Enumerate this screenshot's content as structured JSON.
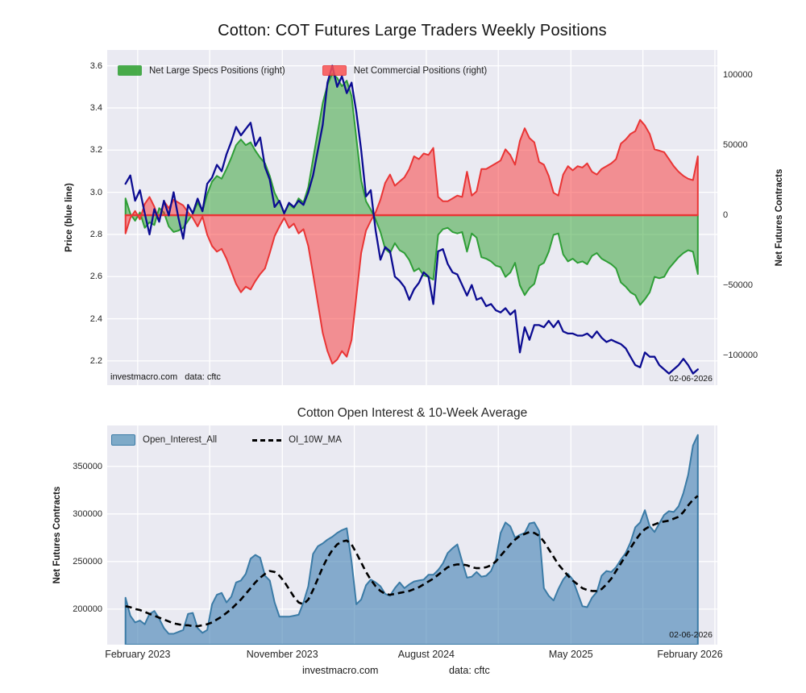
{
  "figure_background": "#ffffff",
  "footer": {
    "site": "investmacro.com",
    "source": "data: cftc"
  },
  "chart_data": [
    {
      "type": "line",
      "title": "Cotton: COT Futures Large Traders Weekly Positions",
      "ylabel_left": "Price (blue line)",
      "ylabel_right": "Net Futures Contracts",
      "background": "#eaeaf2",
      "grid_color": "#ffffff",
      "zero_line_color": "#e93535",
      "ylim_left": [
        2.085,
        3.675
      ],
      "ylim_right": [
        -121300,
        117900
      ],
      "yticks_left": {
        "values": [
          3.6,
          3.4,
          3.2,
          3.0,
          2.8,
          2.6,
          2.4,
          2.2
        ],
        "labels": [
          "3.6",
          "3.4",
          "3.2",
          "3.0",
          "2.8",
          "2.6",
          "2.4",
          "2.2"
        ]
      },
      "yticks_right": {
        "values": [
          100000,
          50000,
          0,
          -50000,
          -100000
        ],
        "labels": [
          "100000",
          "50000",
          "0",
          "−50000",
          "−100000"
        ]
      },
      "legend": [
        {
          "label": "Net Large Specs Positions (right)",
          "color": "#2ca02c",
          "border": "#2f9e37"
        },
        {
          "label": "Net Commercial Positions (right)",
          "color": "#fa5252",
          "border": "#e93535"
        }
      ],
      "annotations": {
        "source": "investmacro.com   data: cftc",
        "date": "02-06-2026"
      },
      "series": [
        {
          "name": "Price",
          "axis": "left",
          "style": "line",
          "color": "#0c0c92",
          "values": [
            3.04,
            3.08,
            2.96,
            3.01,
            2.9,
            2.8,
            2.92,
            2.86,
            2.96,
            2.89,
            3.0,
            2.88,
            2.78,
            2.94,
            2.9,
            2.97,
            2.91,
            3.04,
            3.07,
            3.13,
            3.1,
            3.18,
            3.24,
            3.31,
            3.27,
            3.3,
            3.33,
            3.22,
            3.26,
            3.12,
            3.06,
            2.93,
            2.96,
            2.9,
            2.95,
            2.93,
            2.96,
            2.94,
            3.0,
            3.08,
            3.2,
            3.32,
            3.52,
            3.6,
            3.5,
            3.55,
            3.47,
            3.52,
            3.38,
            3.2,
            2.98,
            3.01,
            2.82,
            2.68,
            2.74,
            2.72,
            2.6,
            2.58,
            2.55,
            2.49,
            2.54,
            2.57,
            2.62,
            2.6,
            2.47,
            2.72,
            2.73,
            2.66,
            2.62,
            2.61,
            2.56,
            2.51,
            2.56,
            2.49,
            2.5,
            2.46,
            2.47,
            2.44,
            2.43,
            2.45,
            2.42,
            2.44,
            2.24,
            2.36,
            2.3,
            2.37,
            2.37,
            2.36,
            2.39,
            2.36,
            2.39,
            2.34,
            2.33,
            2.33,
            2.32,
            2.32,
            2.33,
            2.31,
            2.34,
            2.31,
            2.29,
            2.3,
            2.29,
            2.28,
            2.26,
            2.22,
            2.18,
            2.17,
            2.24,
            2.22,
            2.22,
            2.18,
            2.16,
            2.14,
            2.16,
            2.18,
            2.21,
            2.18,
            2.14,
            2.16
          ]
        },
        {
          "name": "Net Large Specs Positions (right)",
          "axis": "right",
          "style": "area",
          "fill": "#2ca02c",
          "stroke": "#2f9e37",
          "values": [
            12000,
            1000,
            -4000,
            2000,
            -9000,
            -5000,
            -7000,
            5000,
            2000,
            -8000,
            -12000,
            -11000,
            -9000,
            -4000,
            1000,
            9000,
            3000,
            15000,
            24000,
            28000,
            26000,
            33000,
            41000,
            50000,
            54000,
            50000,
            52000,
            46000,
            41000,
            37000,
            28000,
            16000,
            9000,
            2000,
            8000,
            5000,
            12000,
            9000,
            20000,
            40000,
            60000,
            80000,
            93000,
            101000,
            98000,
            92000,
            96000,
            85000,
            55000,
            25000,
            10000,
            4000,
            -3000,
            -12000,
            -24000,
            -27000,
            -20000,
            -25000,
            -27000,
            -32000,
            -40000,
            -38000,
            -43000,
            -44000,
            -46000,
            -14000,
            -10000,
            -9000,
            -12000,
            -13000,
            -12000,
            -26000,
            -13000,
            -16000,
            -30000,
            -31000,
            -33000,
            -36000,
            -37000,
            -44000,
            -41000,
            -34000,
            -50000,
            -57000,
            -52000,
            -49000,
            -36000,
            -34000,
            -26000,
            -14000,
            -13000,
            -28000,
            -33000,
            -31000,
            -34000,
            -33000,
            -35000,
            -29000,
            -27000,
            -31000,
            -33000,
            -35000,
            -38000,
            -48000,
            -51000,
            -55000,
            -57000,
            -64000,
            -60000,
            -55000,
            -44000,
            -45000,
            -44000,
            -38000,
            -34000,
            -30000,
            -27000,
            -25000,
            -26000,
            -42000
          ]
        },
        {
          "name": "Net Commercial Positions (right)",
          "axis": "right",
          "style": "area",
          "fill": "#fa3232",
          "stroke": "#e93535",
          "values": [
            -13000,
            -2000,
            3000,
            -3000,
            8000,
            13000,
            6000,
            -4000,
            10000,
            5000,
            11000,
            9000,
            7000,
            2000,
            -2000,
            -8000,
            -1000,
            -14000,
            -22000,
            -26000,
            -24000,
            -31000,
            -40000,
            -49000,
            -55000,
            -51000,
            -53000,
            -47000,
            -42000,
            -38000,
            -27000,
            -15000,
            -8000,
            -2000,
            -9000,
            -6000,
            -13000,
            -10000,
            -22000,
            -42000,
            -63000,
            -84000,
            -97000,
            -106000,
            -103000,
            -97000,
            -101000,
            -89000,
            -58000,
            -27000,
            -11000,
            -4000,
            2000,
            11000,
            23000,
            29000,
            21000,
            24000,
            27000,
            33000,
            42000,
            40000,
            44000,
            43000,
            48000,
            13000,
            10000,
            10000,
            12000,
            14000,
            13000,
            31000,
            14000,
            17000,
            33000,
            33000,
            35000,
            37000,
            39000,
            47000,
            43000,
            36000,
            53000,
            62000,
            55000,
            52000,
            38000,
            36000,
            28000,
            16000,
            14000,
            29000,
            35000,
            32000,
            35000,
            34000,
            37000,
            31000,
            29000,
            33000,
            35000,
            37000,
            40000,
            51000,
            54000,
            58000,
            60000,
            68000,
            64000,
            58000,
            47000,
            46000,
            45000,
            40000,
            35000,
            31000,
            28000,
            26000,
            25000,
            42000
          ]
        }
      ]
    },
    {
      "type": "area",
      "title": "Cotton Open Interest & 10-Week Average",
      "ylabel_left": "Net Futures Contracts",
      "background": "#eaeaf2",
      "grid_color": "#ffffff",
      "ylim": [
        162600,
        393000
      ],
      "yticks_left": {
        "values": [
          350000,
          300000,
          250000,
          200000
        ],
        "labels": [
          "350000",
          "300000",
          "250000",
          "200000"
        ]
      },
      "xticks": {
        "labels": [
          "February 2023",
          "November 2023",
          "August 2024",
          "May 2025",
          "February 2026"
        ]
      },
      "legend": [
        {
          "label": "Open_Interest_All",
          "color": "#7eaac8",
          "border": "#3b7ba6"
        },
        {
          "label": "OI_10W_MA",
          "style": "dashed",
          "color": "#000000"
        }
      ],
      "annotations": {
        "date": "02-06-2026"
      },
      "series": [
        {
          "name": "Open_Interest_All",
          "style": "area",
          "fill": "#4682b4",
          "stroke": "#3b7ba6",
          "values": [
            212000,
            193000,
            186000,
            188000,
            184000,
            195000,
            198000,
            190000,
            180000,
            174000,
            174000,
            176000,
            178000,
            195000,
            196000,
            180000,
            175000,
            178000,
            205000,
            215000,
            217000,
            207000,
            213000,
            228000,
            230000,
            237000,
            253000,
            257000,
            254000,
            235000,
            230000,
            207000,
            192000,
            192000,
            192000,
            193000,
            194000,
            207000,
            224000,
            258000,
            266000,
            269000,
            273000,
            276000,
            280000,
            283000,
            285000,
            250000,
            205000,
            210000,
            225000,
            231000,
            228000,
            224000,
            216000,
            214000,
            222000,
            228000,
            222000,
            226000,
            229000,
            230000,
            231000,
            236000,
            236000,
            241000,
            248000,
            259000,
            264000,
            268000,
            250000,
            233000,
            234000,
            239000,
            234000,
            235000,
            240000,
            252000,
            280000,
            291000,
            287000,
            275000,
            278000,
            280000,
            290000,
            291000,
            282000,
            222000,
            214000,
            209000,
            221000,
            231000,
            237000,
            231000,
            217000,
            203000,
            202000,
            212000,
            218000,
            235000,
            240000,
            239000,
            244000,
            252000,
            259000,
            270000,
            286000,
            291000,
            304000,
            287000,
            281000,
            290000,
            299000,
            303000,
            302000,
            308000,
            322000,
            341000,
            372000,
            383000
          ]
        },
        {
          "name": "OI_10W_MA",
          "style": "dashed-line",
          "color": "#000000",
          "values": [
            203000,
            202000,
            200000,
            199000,
            197000,
            195000,
            193000,
            191000,
            189000,
            187000,
            185000,
            184000,
            183000,
            183000,
            182000,
            182000,
            183000,
            184000,
            186000,
            189000,
            192000,
            196000,
            200000,
            205000,
            210000,
            216000,
            222000,
            228000,
            233000,
            237000,
            240000,
            239000,
            235000,
            229000,
            221000,
            213000,
            207000,
            205000,
            210000,
            220000,
            232000,
            244000,
            254000,
            262000,
            268000,
            271000,
            272000,
            268000,
            259000,
            249000,
            239000,
            231000,
            224000,
            219000,
            216000,
            215000,
            216000,
            217000,
            218000,
            219000,
            221000,
            223000,
            226000,
            229000,
            232000,
            236000,
            240000,
            244000,
            246000,
            247000,
            247000,
            246000,
            244000,
            243000,
            243000,
            244000,
            246000,
            250000,
            256000,
            262000,
            268000,
            273000,
            277000,
            279000,
            281000,
            280000,
            277000,
            271000,
            263000,
            255000,
            247000,
            241000,
            235000,
            230000,
            226000,
            222000,
            220000,
            219000,
            219000,
            221000,
            226000,
            232000,
            240000,
            248000,
            256000,
            264000,
            272000,
            279000,
            284000,
            287000,
            289000,
            291000,
            292000,
            293000,
            295000,
            297000,
            302000,
            309000,
            315000,
            319000
          ]
        }
      ]
    }
  ]
}
